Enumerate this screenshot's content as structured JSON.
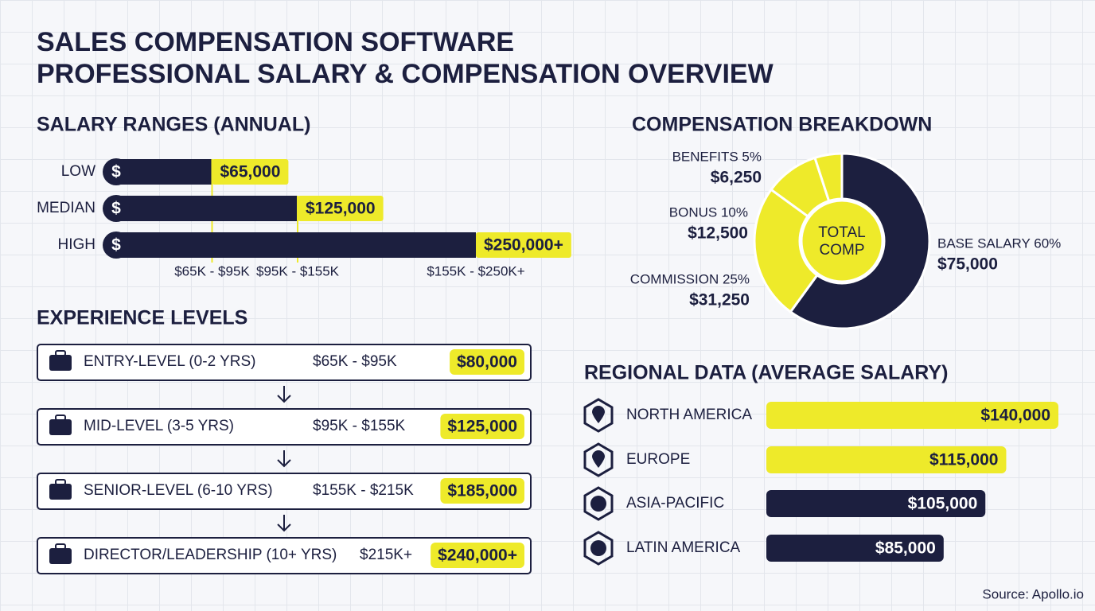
{
  "header": {
    "title_lines": [
      "SALES COMPENSATION SOFTWARE",
      "PROFESSIONAL SALARY & COMPENSATION OVERVIEW"
    ]
  },
  "chart_data": [
    {
      "type": "hbar",
      "title": "SALARY RANGES (ANNUAL)",
      "categories": [
        "LOW",
        "MEDIAN",
        "HIGH"
      ],
      "values": [
        65000,
        125000,
        250000
      ],
      "value_labels": [
        "$65,000",
        "$125,000",
        "$250,000+"
      ],
      "range_labels": [
        "$65K - $95K",
        "$95K - $155K",
        "$155K - $250K+"
      ],
      "color": "#1c1f3f",
      "label_color": "#eeea2a"
    },
    {
      "type": "donut",
      "title": "COMPENSATION BREAKDOWN",
      "center_label": [
        "TOTAL",
        "COMP"
      ],
      "categories": [
        "BASE SALARY 60%",
        "COMMISSION 25%",
        "BONUS 10%",
        "BENEFITS 5%"
      ],
      "values": [
        75000,
        31250,
        12500,
        6250
      ],
      "value_labels": [
        "$75,000",
        "$31,250",
        "$12,500",
        "$6,250"
      ],
      "colors": [
        "#1c1f3f",
        "#eeea2a",
        "#eeea2a",
        "#eeea2a"
      ]
    },
    {
      "type": "regionbar",
      "title": "REGIONAL DATA (AVERAGE SALARY)",
      "categories": [
        "NORTH AMERICA",
        "EUROPE",
        "ASIA-PACIFIC",
        "LATIN AMERICA"
      ],
      "values": [
        140000,
        115000,
        105000,
        85000
      ],
      "value_labels": [
        "$140,000",
        "$115,000",
        "$105,000",
        "$85,000"
      ],
      "colors": [
        "#eeea2a",
        "#eeea2a",
        "#1c1f3f",
        "#1c1f3f"
      ],
      "label_colors": [
        "#1c1f3f",
        "#1c1f3f",
        "#ffffff",
        "#ffffff"
      ]
    }
  ],
  "experience": {
    "title": "EXPERIENCE LEVELS",
    "levels": [
      {
        "name": "ENTRY-LEVEL (0-2 YRS)",
        "range": "$65K - $95K",
        "salary": "$80,000"
      },
      {
        "name": "MID-LEVEL (3-5 YRS)",
        "range": "$95K - $155K",
        "salary": "$125,000"
      },
      {
        "name": "SENIOR-LEVEL (6-10 YRS)",
        "range": "$155K - $215K",
        "salary": "$185,000"
      },
      {
        "name": "DIRECTOR/LEADERSHIP (10+ YRS)",
        "range": "$215K+",
        "salary": "$240,000+"
      }
    ]
  },
  "source": "Source: Apollo.io"
}
